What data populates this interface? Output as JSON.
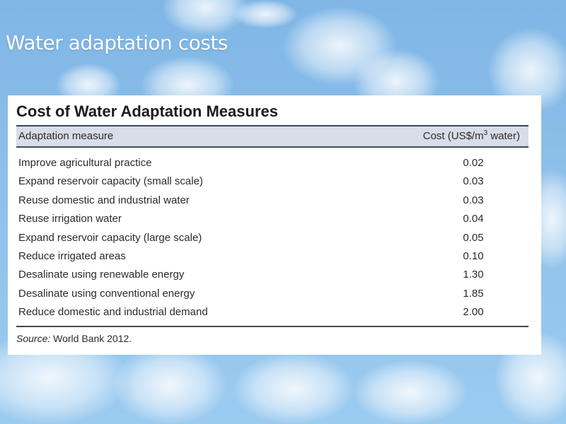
{
  "slide": {
    "title": "Water adaptation costs"
  },
  "table": {
    "title": "Cost of Water Adaptation Measures",
    "headers": {
      "measure": "Adaptation measure",
      "cost_prefix": "Cost (US$/m",
      "cost_sup": "3",
      "cost_suffix": " water)"
    },
    "rows": [
      {
        "measure": "Improve agricultural practice",
        "cost": "0.02"
      },
      {
        "measure": "Expand reservoir capacity (small scale)",
        "cost": "0.03"
      },
      {
        "measure": "Reuse domestic and industrial water",
        "cost": "0.03"
      },
      {
        "measure": "Reuse irrigation water",
        "cost": "0.04"
      },
      {
        "measure": "Expand reservoir capacity (large scale)",
        "cost": "0.05"
      },
      {
        "measure": "Reduce irrigated areas",
        "cost": "0.10"
      },
      {
        "measure": "Desalinate using renewable energy",
        "cost": "1.30"
      },
      {
        "measure": "Desalinate using conventional energy",
        "cost": "1.85"
      },
      {
        "measure": "Reduce domestic and industrial demand",
        "cost": "2.00"
      }
    ],
    "source_label": "Source:",
    "source_text": " World Bank 2012."
  },
  "colors": {
    "header_fill": "#d7dde9",
    "rule": "#3f4758",
    "sky": "#8ec0ea"
  }
}
